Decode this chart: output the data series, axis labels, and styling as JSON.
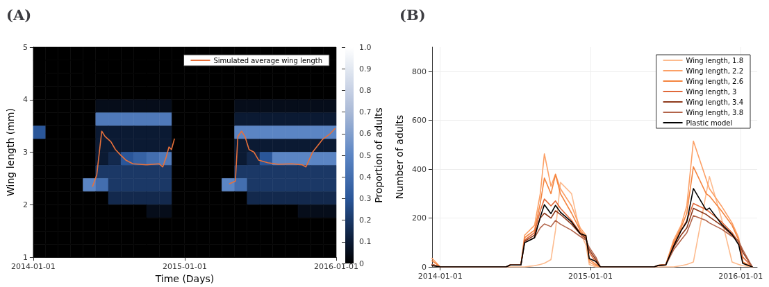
{
  "chart_data": [
    {
      "type": "heatmap",
      "title": "(A)",
      "xlabel": "Time (Days)",
      "ylabel": "Wing length (mm)",
      "clabel": "Proportion of adults",
      "legend": "top right",
      "x": [
        "2014-01-16",
        "2014-02-15",
        "2014-03-16",
        "2014-04-16",
        "2014-05-16",
        "2014-06-16",
        "2014-07-16",
        "2014-08-16",
        "2014-09-16",
        "2014-10-16",
        "2014-11-16",
        "2014-12-16",
        "2015-01-16",
        "2015-02-15",
        "2015-03-16",
        "2015-04-16",
        "2015-05-16",
        "2015-06-16",
        "2015-07-16",
        "2015-08-16",
        "2015-09-16",
        "2015-10-16",
        "2015-11-16",
        "2015-12-16"
      ],
      "xlim": [
        "2014-01-01",
        "2016-01-01"
      ],
      "xticks": [
        "2014-01-01",
        "2015-01-01",
        "2016-01-01"
      ],
      "ylim": [
        1,
        5
      ],
      "yticks": [
        1,
        2,
        3,
        4,
        5
      ],
      "clim": [
        0,
        1
      ],
      "cticks": [
        0,
        0.1,
        0.2,
        0.3,
        0.4,
        0.5,
        0.6,
        0.7,
        0.8,
        0.9,
        {
          "value": 1,
          "label": "1.0"
        }
      ],
      "cells": [
        [
          0,
          0,
          0,
          0,
          0,
          0,
          0,
          0,
          0,
          0,
          0,
          0,
          0,
          0,
          0,
          0,
          0,
          0,
          0,
          0,
          0,
          0,
          0,
          0
        ],
        [
          0,
          0,
          0,
          0,
          0,
          0,
          0,
          0,
          0,
          0,
          0,
          0,
          0,
          0,
          0,
          0,
          0,
          0,
          0,
          0,
          0,
          0,
          0,
          0
        ],
        [
          0,
          0,
          0,
          0,
          0,
          0,
          0,
          0,
          0,
          0,
          0,
          0,
          0,
          0,
          0,
          0,
          0,
          0,
          0,
          0,
          0,
          0,
          0,
          0
        ],
        [
          0,
          0,
          0,
          0,
          0,
          0,
          0,
          0,
          0,
          0,
          0,
          0,
          0,
          0,
          0,
          0,
          0,
          0,
          0,
          0,
          0,
          0,
          0,
          0
        ],
        [
          0,
          0,
          0,
          0,
          0,
          0.05,
          0.05,
          0.05,
          0.05,
          0.05,
          0.05,
          0,
          0,
          0,
          0,
          0,
          0.05,
          0.05,
          0.05,
          0.05,
          0.05,
          0.05,
          0.05,
          0.05
        ],
        [
          0,
          0,
          0,
          0,
          0,
          0.45,
          0.45,
          0.45,
          0.45,
          0.45,
          0.45,
          0,
          0,
          0,
          0,
          0,
          0.1,
          0.1,
          0.1,
          0.1,
          0.1,
          0.1,
          0.1,
          0.1
        ],
        [
          0.3,
          0,
          0,
          0,
          0,
          0.1,
          0.1,
          0.1,
          0.1,
          0.1,
          0.1,
          0,
          0,
          0,
          0,
          0,
          0.5,
          0.5,
          0.5,
          0.5,
          0.5,
          0.5,
          0.5,
          0.5
        ],
        [
          0,
          0,
          0,
          0,
          0,
          0.1,
          0.1,
          0.1,
          0.1,
          0.1,
          0.1,
          0,
          0,
          0,
          0,
          0,
          0.1,
          0.1,
          0.1,
          0.1,
          0.1,
          0.1,
          0.1,
          0.1
        ],
        [
          0,
          0,
          0,
          0,
          0,
          0.1,
          0.15,
          0.3,
          0.35,
          0.4,
          0.45,
          0,
          0,
          0,
          0,
          0,
          0.1,
          0.15,
          0.3,
          0.5,
          0.5,
          0.5,
          0.5,
          0.5
        ],
        [
          0,
          0,
          0,
          0,
          0,
          0.2,
          0.2,
          0.2,
          0.2,
          0.2,
          0.2,
          0,
          0,
          0,
          0,
          0,
          0.2,
          0.2,
          0.2,
          0.2,
          0.2,
          0.2,
          0.2,
          0.2
        ],
        [
          0,
          0,
          0,
          0,
          0.5,
          0.4,
          0.2,
          0.2,
          0.2,
          0.2,
          0.2,
          0,
          0,
          0,
          0,
          0.5,
          0.4,
          0.2,
          0.2,
          0.2,
          0.2,
          0.2,
          0.2,
          0.2
        ],
        [
          0,
          0,
          0,
          0,
          0,
          0,
          0.15,
          0.15,
          0.15,
          0.15,
          0.15,
          0,
          0,
          0,
          0,
          0,
          0,
          0.15,
          0.15,
          0.15,
          0.15,
          0.15,
          0.15,
          0.15
        ],
        [
          0,
          0,
          0,
          0,
          0,
          0,
          0,
          0,
          0,
          0.05,
          0.05,
          0,
          0,
          0,
          0,
          0,
          0,
          0,
          0,
          0,
          0,
          0.05,
          0.05,
          0.05
        ],
        [
          0,
          0,
          0,
          0,
          0,
          0,
          0,
          0,
          0,
          0,
          0,
          0,
          0,
          0,
          0,
          0,
          0,
          0,
          0,
          0,
          0,
          0,
          0,
          0
        ],
        [
          0,
          0,
          0,
          0,
          0,
          0,
          0,
          0,
          0,
          0,
          0,
          0,
          0,
          0,
          0,
          0,
          0,
          0,
          0,
          0,
          0,
          0,
          0,
          0
        ],
        [
          0,
          0,
          0,
          0,
          0,
          0,
          0,
          0,
          0,
          0,
          0,
          0,
          0,
          0,
          0,
          0,
          0,
          0,
          0,
          0,
          0,
          0,
          0,
          0
        ]
      ],
      "series": [
        {
          "type": "line",
          "name": "Simulated average wing length",
          "color": "#e8703a",
          "x": [
            "2014-05-24",
            "2014-06-03",
            "2014-06-15",
            "2014-06-23",
            "2014-07-07",
            "2014-07-18",
            "2014-07-30",
            "2014-08-12",
            "2014-08-29",
            "2014-10-01",
            "2014-10-31",
            "2014-11-09",
            "2014-11-17",
            "2014-11-24",
            "2014-11-30",
            "2014-12-07",
            null,
            "2015-04-19",
            "2015-05-03",
            "2015-05-09",
            "2015-05-18",
            "2015-05-26",
            "2015-06-05",
            "2015-06-17",
            "2015-06-28",
            "2015-07-20",
            "2015-08-14",
            "2015-09-16",
            "2015-10-11",
            "2015-10-20",
            "2015-11-05",
            "2015-11-30",
            "2015-12-17",
            "2015-12-29"
          ],
          "values": [
            2.35,
            2.57,
            3.4,
            3.3,
            3.2,
            3.05,
            2.95,
            2.85,
            2.78,
            2.76,
            2.78,
            2.72,
            2.9,
            3.1,
            3.05,
            3.25,
            null,
            2.4,
            2.45,
            3.3,
            3.4,
            3.3,
            3.05,
            3.0,
            2.85,
            2.8,
            2.77,
            2.78,
            2.76,
            2.72,
            3.0,
            3.25,
            3.35,
            3.45
          ]
        }
      ]
    },
    {
      "type": "line",
      "title": "(B)",
      "ylabel": "Number of adults",
      "legend": "top right",
      "grid": true,
      "marker": "none",
      "line_style": "solid",
      "x": [
        "2013-12-12",
        "2014-01-01",
        "2014-06-10",
        "2014-06-20",
        "2014-07-16",
        "2014-07-25",
        "2014-08-18",
        "2014-09-01",
        "2014-09-11",
        "2014-09-27",
        "2014-10-08",
        "2014-10-20",
        "2014-11-16",
        "2014-12-07",
        "2014-12-21",
        "2014-12-29",
        "2015-01-14",
        "2015-01-25",
        "2015-06-05",
        "2015-06-14",
        "2015-07-03",
        "2015-07-22",
        "2015-08-09",
        "2015-08-23",
        "2015-09-08",
        "2015-10-09",
        "2015-10-17",
        "2015-11-15",
        "2015-12-11",
        "2015-12-27",
        "2016-01-06",
        "2016-01-29"
      ],
      "xlim": [
        "2013-12-12",
        "2016-02-10"
      ],
      "xticks": [
        "2014-01-01",
        "2015-01-01",
        "2016-01-01"
      ],
      "ylim": [
        0,
        900
      ],
      "yticks": [
        0,
        200,
        400,
        600,
        800
      ],
      "series": [
        {
          "name": "Wing length, 1.8",
          "color": "#fdbb8e",
          "values": [
            5,
            0,
            0,
            0,
            0,
            0,
            5,
            10,
            15,
            30,
            150,
            346,
            300,
            140,
            90,
            10,
            0,
            0,
            0,
            0,
            0,
            0,
            5,
            10,
            20,
            300,
            370,
            200,
            20,
            10,
            5,
            0
          ]
        },
        {
          "name": "Wing length, 2.2",
          "color": "#fca066",
          "values": [
            35,
            0,
            0,
            8,
            8,
            130,
            170,
            300,
            463,
            330,
            380,
            320,
            250,
            160,
            130,
            20,
            5,
            0,
            0,
            6,
            10,
            110,
            170,
            250,
            515,
            360,
            320,
            250,
            180,
            120,
            20,
            0
          ]
        },
        {
          "name": "Wing length, 2.6",
          "color": "#f4843f",
          "values": [
            25,
            0,
            0,
            8,
            8,
            120,
            150,
            260,
            364,
            300,
            378,
            300,
            220,
            150,
            120,
            30,
            10,
            0,
            0,
            6,
            10,
            100,
            160,
            220,
            410,
            300,
            290,
            230,
            170,
            110,
            20,
            0
          ]
        },
        {
          "name": "Wing length, 3",
          "color": "#e0693a",
          "values": [
            10,
            0,
            0,
            8,
            8,
            110,
            140,
            230,
            278,
            250,
            270,
            240,
            190,
            140,
            120,
            60,
            20,
            0,
            0,
            6,
            8,
            90,
            150,
            190,
            260,
            235,
            225,
            185,
            140,
            100,
            40,
            0
          ]
        },
        {
          "name": "Wing length, 3.4",
          "color": "#8e3a1c",
          "values": [
            10,
            0,
            0,
            8,
            8,
            105,
            130,
            200,
            220,
            200,
            230,
            215,
            175,
            135,
            115,
            70,
            30,
            0,
            0,
            6,
            8,
            80,
            130,
            160,
            240,
            215,
            205,
            170,
            130,
            105,
            60,
            0
          ]
        },
        {
          "name": "Wing length, 3.8",
          "color": "#b2644a",
          "values": [
            10,
            0,
            0,
            8,
            8,
            100,
            120,
            160,
            176,
            165,
            190,
            175,
            150,
            125,
            110,
            80,
            40,
            0,
            0,
            6,
            8,
            70,
            110,
            140,
            210,
            190,
            180,
            155,
            125,
            105,
            70,
            0
          ]
        },
        {
          "name": "Plastic model",
          "color": "#000000",
          "values": [
            5,
            0,
            0,
            8,
            8,
            99,
            119,
            204,
            255,
            218,
            252,
            224,
            184,
            136,
            128,
            34,
            23,
            0,
            0,
            6,
            8,
            85,
            148,
            184,
            321,
            233,
            241,
            176,
            133,
            91,
            14,
            0
          ]
        }
      ]
    }
  ]
}
